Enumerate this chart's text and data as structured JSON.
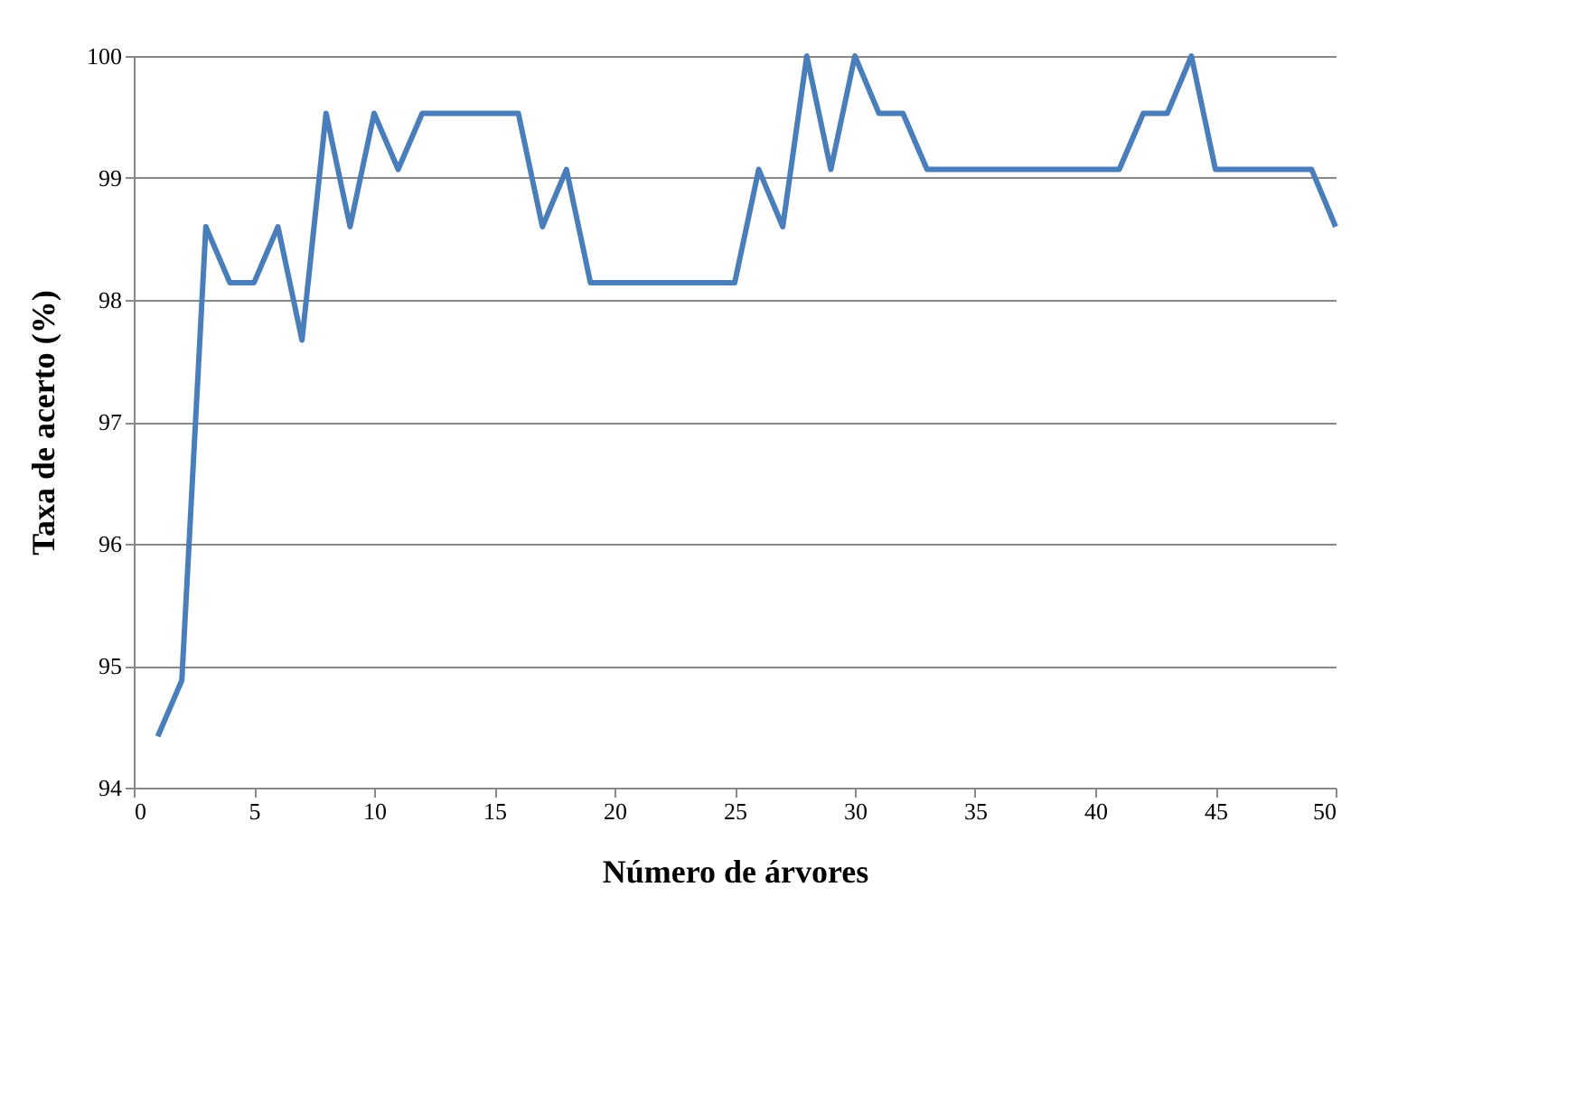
{
  "chart_data": {
    "type": "line",
    "xlabel": "Número de árvores",
    "ylabel": "Taxa de acerto (%)",
    "x": [
      1,
      2,
      3,
      4,
      5,
      6,
      7,
      8,
      9,
      10,
      11,
      12,
      13,
      14,
      15,
      16,
      17,
      18,
      19,
      20,
      21,
      22,
      23,
      24,
      25,
      26,
      27,
      28,
      29,
      30,
      31,
      32,
      33,
      34,
      35,
      36,
      37,
      38,
      39,
      40,
      41,
      42,
      43,
      44,
      45,
      46,
      47,
      48,
      49,
      50
    ],
    "series": [
      {
        "color": "#4a7ebb",
        "values": [
          94.42,
          94.88,
          98.6,
          98.14,
          98.14,
          98.6,
          97.67,
          99.53,
          98.6,
          99.53,
          99.07,
          99.53,
          99.53,
          99.53,
          99.53,
          99.53,
          98.6,
          99.07,
          98.14,
          98.14,
          98.14,
          98.14,
          98.14,
          98.14,
          98.14,
          99.07,
          98.6,
          100,
          99.07,
          100,
          99.53,
          99.53,
          99.07,
          99.07,
          99.07,
          99.07,
          99.07,
          99.07,
          99.07,
          99.07,
          99.07,
          99.53,
          99.53,
          100,
          99.07,
          99.07,
          99.07,
          99.07,
          99.07,
          98.6
        ]
      }
    ],
    "xlim": [
      0,
      50
    ],
    "xticks": [
      0,
      5,
      10,
      15,
      20,
      25,
      30,
      35,
      40,
      45,
      50
    ],
    "ylim": [
      94,
      100
    ],
    "yticks": [
      94,
      95,
      96,
      97,
      98,
      99,
      100
    ],
    "grid": "y",
    "legend": false,
    "marker": "none",
    "line_style": "solid"
  }
}
